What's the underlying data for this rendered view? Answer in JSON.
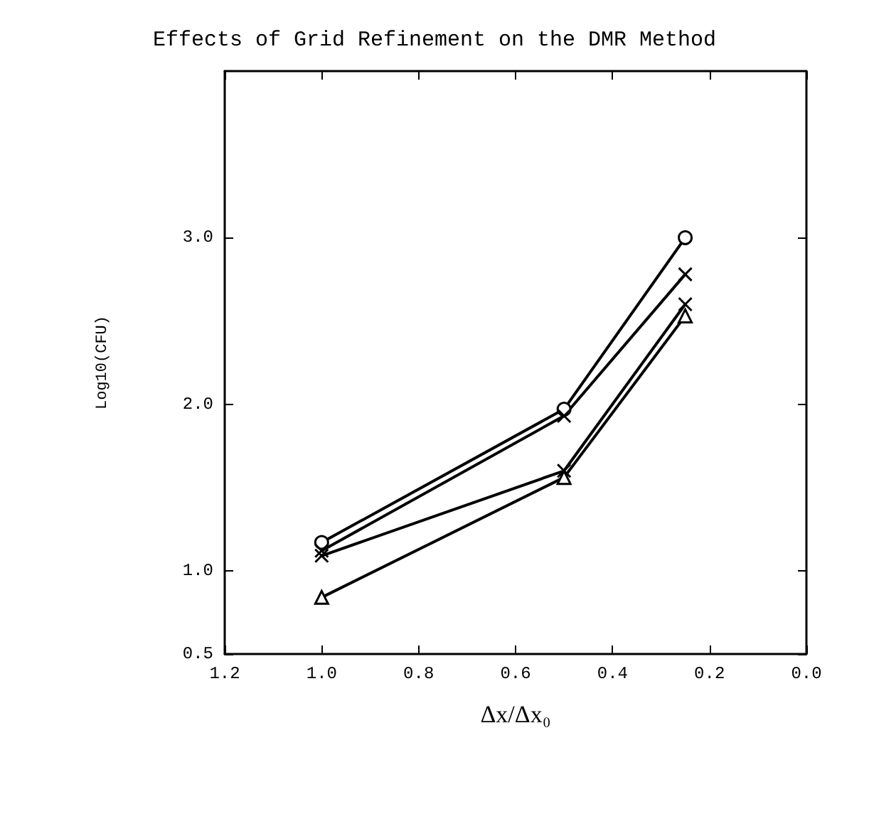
{
  "chart_data": {
    "type": "line",
    "title": "Effects of Grid Refinement on the DMR Method",
    "xlabel": "Δx/Δx₀",
    "ylabel": "Log10(CFU)",
    "x": [
      1.0,
      0.5,
      0.25
    ],
    "series": [
      {
        "color": "#000000",
        "marker": "circle",
        "values": [
          1.17,
          1.97,
          3.0
        ]
      },
      {
        "color": "#000000",
        "marker": "cross",
        "values": [
          1.12,
          1.93,
          2.78
        ]
      },
      {
        "color": "#000000",
        "marker": "cross",
        "values": [
          1.09,
          1.6,
          2.6
        ]
      },
      {
        "color": "#000000",
        "marker": "triangle",
        "values": [
          0.84,
          1.56,
          2.53
        ]
      }
    ],
    "xlim": [
      1.2,
      0.0
    ],
    "xticks": [
      {
        "value": 1.2,
        "label": "1.2"
      },
      {
        "value": 1.0,
        "label": "1.0"
      },
      {
        "value": 0.8,
        "label": "0.8"
      },
      {
        "value": 0.6,
        "label": "0.6"
      },
      {
        "value": 0.4,
        "label": "0.4"
      },
      {
        "value": 0.2,
        "label": "0.2"
      },
      {
        "value": 0.0,
        "label": "0.0"
      }
    ],
    "ylim": [
      0.5,
      4.0
    ],
    "yticks": [
      {
        "value": 0.5,
        "label": "0.5"
      },
      {
        "value": 1.0,
        "label": "1.0"
      },
      {
        "value": 2.0,
        "label": "2.0"
      },
      {
        "value": 3.0,
        "label": "3.0"
      }
    ],
    "grid": false,
    "line_style": "solid"
  }
}
